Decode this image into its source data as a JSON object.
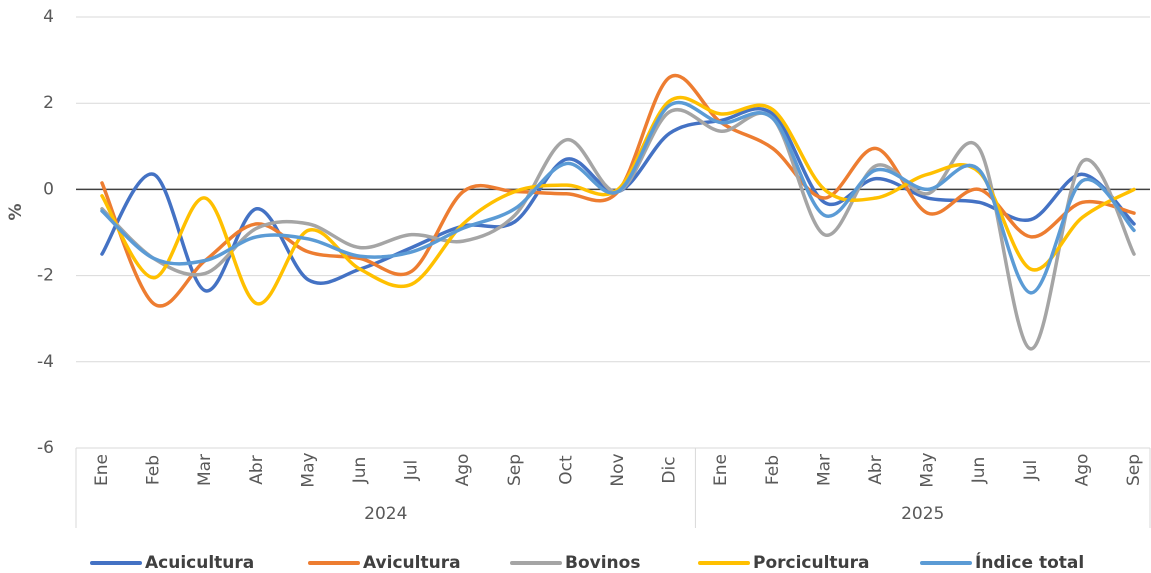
{
  "chart_data": {
    "type": "line",
    "y_label": "%",
    "category_groups": [
      {
        "label": "2024",
        "categories": [
          "Ene",
          "Feb",
          "Mar",
          "Abr",
          "May",
          "Jun",
          "Jul",
          "Ago",
          "Sep",
          "Oct",
          "Nov",
          "Dic"
        ]
      },
      {
        "label": "2025",
        "categories": [
          "Ene",
          "Feb",
          "Mar",
          "Abr",
          "May",
          "Jun",
          "Jul",
          "Ago",
          "Sep"
        ]
      }
    ],
    "ylim": [
      -6,
      4
    ],
    "yticks": [
      -6,
      -4,
      -2,
      0,
      2,
      4
    ],
    "grid": true,
    "smooth": true,
    "legend": "bottom",
    "series": [
      {
        "name": "Acuicultura",
        "color": "#4472c4",
        "values": [
          -1.5,
          0.35,
          -2.35,
          -0.45,
          -2.1,
          -1.85,
          -1.35,
          -0.85,
          -0.75,
          0.7,
          -0.05,
          1.3,
          1.6,
          1.75,
          -0.3,
          0.25,
          -0.2,
          -0.3,
          -0.7,
          0.35,
          -0.8
        ]
      },
      {
        "name": "Avicultura",
        "color": "#ed7d31",
        "values": [
          0.15,
          -2.65,
          -1.65,
          -0.8,
          -1.45,
          -1.6,
          -1.9,
          -0.05,
          -0.05,
          -0.1,
          -0.05,
          2.6,
          1.55,
          0.95,
          -0.2,
          0.95,
          -0.55,
          0.0,
          -1.1,
          -0.3,
          -0.55
        ]
      },
      {
        "name": "Bovinos",
        "color": "#a5a5a5",
        "values": [
          -0.45,
          -1.6,
          -1.95,
          -0.9,
          -0.8,
          -1.35,
          -1.05,
          -1.2,
          -0.6,
          1.15,
          -0.05,
          1.8,
          1.35,
          1.65,
          -1.05,
          0.55,
          -0.1,
          0.95,
          -3.7,
          0.65,
          -1.5
        ]
      },
      {
        "name": "Porcicultura",
        "color": "#ffc000",
        "values": [
          -0.15,
          -2.05,
          -0.2,
          -2.65,
          -0.95,
          -1.85,
          -2.2,
          -0.8,
          -0.05,
          0.1,
          0.0,
          2.05,
          1.75,
          1.85,
          0.0,
          -0.2,
          0.35,
          0.4,
          -1.85,
          -0.65,
          0.0
        ]
      },
      {
        "name": "Índice total",
        "color": "#5b9bd5",
        "values": [
          -0.5,
          -1.6,
          -1.65,
          -1.1,
          -1.15,
          -1.55,
          -1.45,
          -0.9,
          -0.45,
          0.6,
          -0.05,
          1.95,
          1.55,
          1.65,
          -0.6,
          0.45,
          0.0,
          0.45,
          -2.4,
          0.2,
          -0.95
        ]
      }
    ]
  }
}
